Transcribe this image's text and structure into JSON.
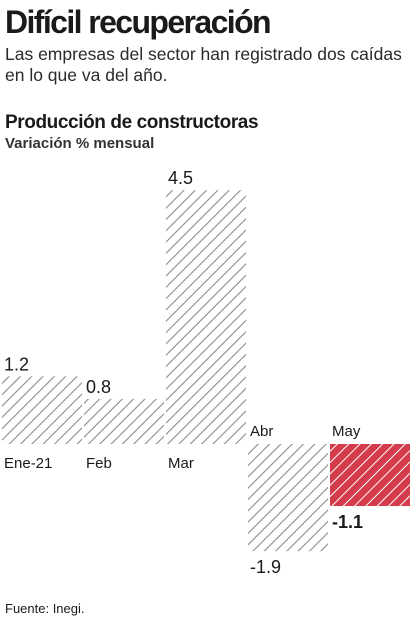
{
  "header": {
    "headline": "Difícil recuperación",
    "dek": "Las empresas del sector han registrado dos caídas en lo que va del año."
  },
  "chart_data": {
    "type": "bar",
    "title": "Producción de constructoras",
    "subtitle": "Variación % mensual",
    "categories": [
      "Ene-21",
      "Feb",
      "Mar",
      "Abr",
      "May"
    ],
    "values": [
      1.2,
      0.8,
      4.5,
      -1.9,
      -1.1
    ],
    "value_labels": [
      "1.2",
      "0.8",
      "4.5",
      "-1.9",
      "-1.1"
    ],
    "highlight_category": "May",
    "ylim": [
      -2.2,
      5.0
    ],
    "grid": false,
    "legend": "none",
    "colors": {
      "hatch": "#8c8c8c",
      "highlight": "#d43c4c",
      "text": "#1a1a1a"
    }
  },
  "footer": {
    "source": "Fuente: Inegi."
  }
}
